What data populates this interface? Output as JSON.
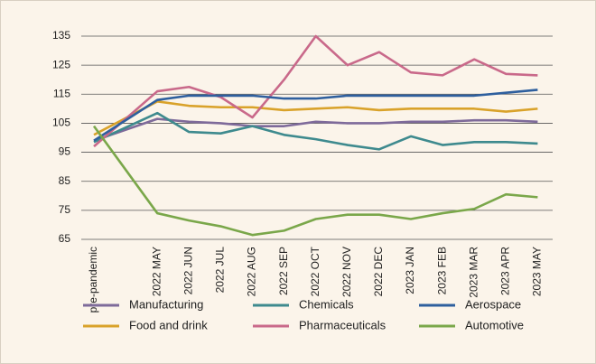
{
  "chart_data": {
    "type": "line",
    "categories": [
      "pre-pandemic",
      "2022 MAY",
      "2022 JUN",
      "2022 JUL",
      "2022 AUG",
      "2022 SEP",
      "2022 OCT",
      "2022 NOV",
      "2022 DEC",
      "2023 JAN",
      "2023 FEB",
      "2023 MAR",
      "2023 APR",
      "2023 MAY"
    ],
    "series": [
      {
        "name": "Manufacturing",
        "color": "#7e6a9a",
        "values": [
          99,
          106.5,
          105.5,
          105,
          104,
          104,
          105.5,
          105,
          105,
          105.5,
          105.5,
          106,
          106,
          105.5
        ]
      },
      {
        "name": "Food and drink",
        "color": "#d9a22a",
        "values": [
          101,
          112.5,
          111,
          110.5,
          110.5,
          109.5,
          110,
          110.5,
          109.5,
          110,
          110,
          110,
          109,
          110
        ]
      },
      {
        "name": "Chemicals",
        "color": "#3e8a8e",
        "values": [
          98.5,
          108.5,
          102,
          101.5,
          104,
          101,
          99.5,
          97.5,
          96,
          100.5,
          97.5,
          98.5,
          98.5,
          98
        ]
      },
      {
        "name": "Pharmaceuticals",
        "color": "#c9698a",
        "values": [
          97,
          116,
          117.5,
          114,
          107,
          120,
          135,
          125,
          129.5,
          122.5,
          121.5,
          127,
          122,
          121.5
        ]
      },
      {
        "name": "Aerospace",
        "color": "#2e5f9e",
        "values": [
          99,
          113,
          114.5,
          114.5,
          114.5,
          113.5,
          113.5,
          114.5,
          114.5,
          114.5,
          114.5,
          114.5,
          115.5,
          116.5
        ]
      },
      {
        "name": "Automotive",
        "color": "#7aa74a",
        "values": [
          104,
          74,
          71.5,
          69.5,
          66.5,
          68,
          72,
          73.5,
          73.5,
          72,
          74,
          75.5,
          80.5,
          79.5
        ]
      }
    ],
    "ylim": [
      65,
      135
    ],
    "yticks": [
      65,
      75,
      85,
      95,
      105,
      115,
      125,
      135
    ],
    "grid": true
  }
}
